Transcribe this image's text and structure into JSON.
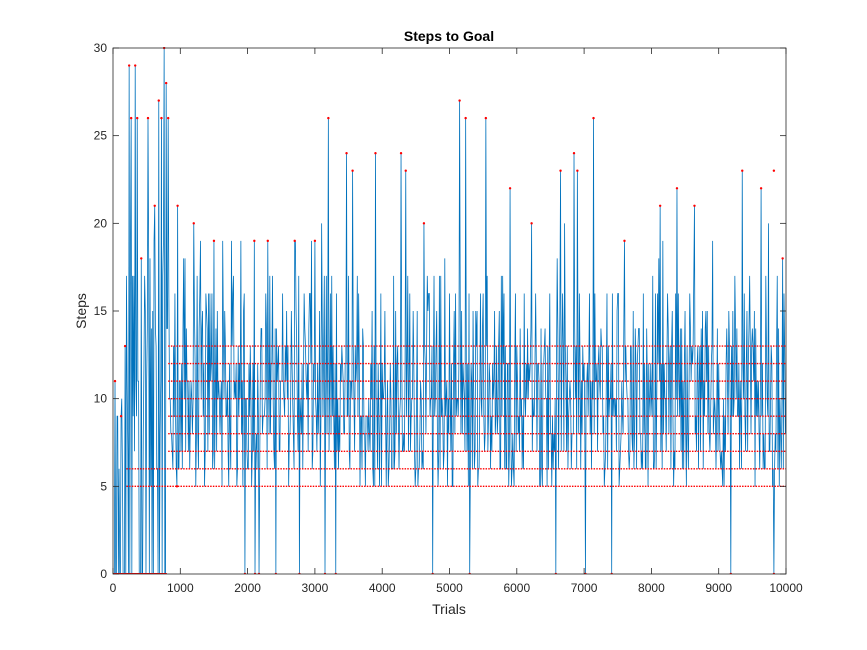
{
  "chart_data": {
    "type": "line",
    "title": "Steps to Goal",
    "xlabel": "Trials",
    "ylabel": "Steps",
    "xlim": [
      0,
      10000
    ],
    "ylim": [
      0,
      30
    ],
    "xticks": [
      0,
      1000,
      2000,
      3000,
      4000,
      5000,
      6000,
      7000,
      8000,
      9000,
      10000
    ],
    "yticks": [
      0,
      5,
      10,
      15,
      20,
      25,
      30
    ],
    "grid": false,
    "series": [
      {
        "line_color": "#0072BD",
        "marker_color": "#FF0000",
        "marker": "point",
        "description_values": {
          "phase1_range": [
            0,
            800
          ],
          "phase1_note": "early trials oscillate between 0 and up to 30 steps",
          "steady_range": [
            5,
            13
          ],
          "steady_levels": [
            5,
            6,
            7,
            8,
            9,
            10,
            11,
            12,
            13
          ]
        },
        "peaks": [
          {
            "x": 30,
            "y": 11
          },
          {
            "x": 120,
            "y": 9
          },
          {
            "x": 180,
            "y": 13
          },
          {
            "x": 240,
            "y": 29
          },
          {
            "x": 270,
            "y": 26
          },
          {
            "x": 330,
            "y": 29
          },
          {
            "x": 360,
            "y": 26
          },
          {
            "x": 420,
            "y": 18
          },
          {
            "x": 520,
            "y": 26
          },
          {
            "x": 620,
            "y": 21
          },
          {
            "x": 680,
            "y": 27
          },
          {
            "x": 720,
            "y": 26
          },
          {
            "x": 760,
            "y": 30
          },
          {
            "x": 790,
            "y": 28
          },
          {
            "x": 820,
            "y": 26
          },
          {
            "x": 960,
            "y": 21
          },
          {
            "x": 1200,
            "y": 20
          },
          {
            "x": 1500,
            "y": 19
          },
          {
            "x": 2100,
            "y": 19
          },
          {
            "x": 2300,
            "y": 19
          },
          {
            "x": 2700,
            "y": 19
          },
          {
            "x": 3000,
            "y": 19
          },
          {
            "x": 3200,
            "y": 26
          },
          {
            "x": 3470,
            "y": 24
          },
          {
            "x": 3560,
            "y": 23
          },
          {
            "x": 3900,
            "y": 24
          },
          {
            "x": 4280,
            "y": 24
          },
          {
            "x": 4350,
            "y": 23
          },
          {
            "x": 4620,
            "y": 20
          },
          {
            "x": 5150,
            "y": 27
          },
          {
            "x": 5240,
            "y": 26
          },
          {
            "x": 5540,
            "y": 26
          },
          {
            "x": 5900,
            "y": 22
          },
          {
            "x": 6220,
            "y": 20
          },
          {
            "x": 6650,
            "y": 23
          },
          {
            "x": 6850,
            "y": 24
          },
          {
            "x": 6900,
            "y": 23
          },
          {
            "x": 7140,
            "y": 26
          },
          {
            "x": 7600,
            "y": 19
          },
          {
            "x": 8130,
            "y": 21
          },
          {
            "x": 8380,
            "y": 22
          },
          {
            "x": 8640,
            "y": 21
          },
          {
            "x": 9350,
            "y": 23
          },
          {
            "x": 9630,
            "y": 22
          },
          {
            "x": 9820,
            "y": 23
          },
          {
            "x": 9950,
            "y": 18
          }
        ],
        "dips": [
          {
            "x": 950,
            "y": 5
          },
          {
            "x": 1960,
            "y": 0
          },
          {
            "x": 2110,
            "y": 0
          },
          {
            "x": 2170,
            "y": 0
          },
          {
            "x": 2420,
            "y": 0
          },
          {
            "x": 2770,
            "y": 0
          },
          {
            "x": 3150,
            "y": 0
          },
          {
            "x": 3310,
            "y": 0
          },
          {
            "x": 4750,
            "y": 0
          },
          {
            "x": 5300,
            "y": 0
          },
          {
            "x": 6580,
            "y": 0
          },
          {
            "x": 7020,
            "y": 0
          },
          {
            "x": 7410,
            "y": 0
          },
          {
            "x": 9180,
            "y": 0
          },
          {
            "x": 9820,
            "y": 0
          }
        ]
      }
    ]
  }
}
